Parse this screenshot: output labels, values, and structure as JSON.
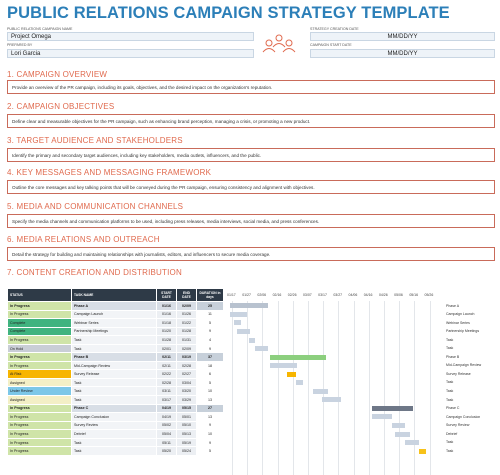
{
  "title": "PUBLIC RELATIONS CAMPAIGN STRATEGY TEMPLATE",
  "fields": {
    "campaign_name_label": "PUBLIC RELATIONS CAMPAIGN NAME",
    "campaign_name": "Project Omega",
    "prepared_by_label": "PREPARED BY",
    "prepared_by": "Lori Garcia",
    "creation_date_label": "STRATEGY CREATION DATE",
    "creation_date": "MM/DD/YY",
    "start_date_label": "CAMPAIGN START DATE",
    "start_date": "MM/DD/YY"
  },
  "sections": [
    {
      "heading": "1. CAMPAIGN OVERVIEW",
      "body": "Provide an overview of the PR campaign, including its goals, objectives, and the desired impact on the organization's reputation."
    },
    {
      "heading": "2. CAMPAIGN OBJECTIVES",
      "body": "Define clear and measurable objectives for the PR campaign, such as enhancing brand perception, managing a crisis, or promoting a new product."
    },
    {
      "heading": "3. TARGET AUDIENCE AND STAKEHOLDERS",
      "body": "Identify the primary and secondary target audiences, including key stakeholders, media outlets, influencers, and the public."
    },
    {
      "heading": "4. KEY MESSAGES AND MESSAGING FRAMEWORK",
      "body": "Outline the core messages and key talking points that will be conveyed during the PR campaign, ensuring consistency and alignment with objectives."
    },
    {
      "heading": "5. MEDIA AND COMMUNICATION CHANNELS",
      "body": "Specify the media channels and communication platforms to be used, including press releases, media interviews, social media, and press conferences."
    },
    {
      "heading": "6. MEDIA RELATIONS AND OUTREACH",
      "body": "Detail the strategy for building and maintaining relationships with journalists, editors, and influencers to secure media coverage."
    }
  ],
  "section7_heading": "7. CONTENT CREATION AND DISTRIBUTION",
  "table": {
    "headers": {
      "status": "STATUS",
      "task": "TASK NAME",
      "start": "START DATE",
      "end": "END DATE",
      "duration": "DURATION in days"
    },
    "rows": [
      {
        "status": "In Progress",
        "task": "Phase A",
        "start": "01/16",
        "end": "02/09",
        "dur": "25",
        "phase": true
      },
      {
        "status": "In Progress",
        "task": "Campaign Launch",
        "start": "01/16",
        "end": "01/26",
        "dur": "11"
      },
      {
        "status": "Complete",
        "task": "Webinar Series",
        "start": "01/18",
        "end": "01/22",
        "dur": "5"
      },
      {
        "status": "Complete",
        "task": "Partnership Meetings",
        "start": "01/20",
        "end": "01/28",
        "dur": "9"
      },
      {
        "status": "In Progress",
        "task": "Task",
        "start": "01/28",
        "end": "01/31",
        "dur": "4"
      },
      {
        "status": "On Hold",
        "task": "Task",
        "start": "02/01",
        "end": "02/09",
        "dur": "9"
      },
      {
        "status": "In Progress",
        "task": "Phase B",
        "start": "02/11",
        "end": "03/19",
        "dur": "37",
        "phase": true
      },
      {
        "status": "In Progress",
        "task": "Mid-Campaign Review",
        "start": "02/11",
        "end": "02/28",
        "dur": "18"
      },
      {
        "status": "At Risk",
        "task": "Survey Release",
        "start": "02/22",
        "end": "02/27",
        "dur": "6"
      },
      {
        "status": "Assigned",
        "task": "Task",
        "start": "02/28",
        "end": "03/04",
        "dur": "5"
      },
      {
        "status": "Under Review",
        "task": "Task",
        "start": "03/11",
        "end": "03/20",
        "dur": "10"
      },
      {
        "status": "Assigned",
        "task": "Task",
        "start": "03/17",
        "end": "03/29",
        "dur": "13"
      },
      {
        "status": "In Progress",
        "task": "Phase C",
        "start": "04/19",
        "end": "05/15",
        "dur": "27",
        "phase": true
      },
      {
        "status": "In Progress",
        "task": "Campaign Conclusion",
        "start": "04/19",
        "end": "05/01",
        "dur": "13"
      },
      {
        "status": "In Progress",
        "task": "Survey Review",
        "start": "05/02",
        "end": "05/10",
        "dur": "9"
      },
      {
        "status": "In Progress",
        "task": "Debrief",
        "start": "05/04",
        "end": "05/13",
        "dur": "10"
      },
      {
        "status": "In Progress",
        "task": "Task",
        "start": "05/11",
        "end": "05/19",
        "dur": "9"
      },
      {
        "status": "In Progress",
        "task": "Task",
        "start": "05/20",
        "end": "05/24",
        "dur": "5"
      }
    ]
  },
  "status_colors": {
    "In Progress": "#cfe4a8",
    "Complete": "#3fb37f",
    "On Hold": "#c9ced6",
    "At Risk": "#f7b500",
    "Assigned": "#f3efc6",
    "Under Review": "#7cc7e8"
  },
  "gantt": {
    "ticks": [
      "01/17",
      "01/27",
      "02/06",
      "02/16",
      "02/26",
      "03/07",
      "03/17",
      "03/27",
      "04/06",
      "04/16",
      "04/26",
      "05/06",
      "05/16",
      "05/26"
    ],
    "first_tick_day": 17,
    "last_tick_day": 146
  },
  "chart_data": {
    "type": "gantt",
    "tasks": [
      {
        "name": "Phase A",
        "start_day": 16,
        "end_day": 40
      },
      {
        "name": "Campaign Launch",
        "start_day": 16,
        "end_day": 26
      },
      {
        "name": "Webinar Series",
        "start_day": 18,
        "end_day": 22
      },
      {
        "name": "Partnership Meetings",
        "start_day": 20,
        "end_day": 28
      },
      {
        "name": "Task",
        "start_day": 28,
        "end_day": 31
      },
      {
        "name": "Task",
        "start_day": 32,
        "end_day": 40
      },
      {
        "name": "Phase B",
        "start_day": 42,
        "end_day": 78
      },
      {
        "name": "Mid-Campaign Review",
        "start_day": 42,
        "end_day": 59
      },
      {
        "name": "Survey Release",
        "start_day": 53,
        "end_day": 58
      },
      {
        "name": "Task",
        "start_day": 59,
        "end_day": 63
      },
      {
        "name": "Task",
        "start_day": 70,
        "end_day": 79
      },
      {
        "name": "Task",
        "start_day": 76,
        "end_day": 88
      },
      {
        "name": "Phase C",
        "start_day": 109,
        "end_day": 135
      },
      {
        "name": "Campaign Conclusion",
        "start_day": 109,
        "end_day": 121
      },
      {
        "name": "Survey Review",
        "start_day": 122,
        "end_day": 130
      },
      {
        "name": "Debrief",
        "start_day": 124,
        "end_day": 133
      },
      {
        "name": "Task",
        "start_day": 131,
        "end_day": 139
      },
      {
        "name": "Task",
        "start_day": 140,
        "end_day": 144
      }
    ]
  }
}
